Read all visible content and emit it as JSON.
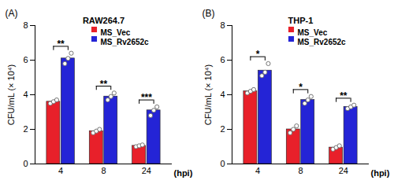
{
  "chart_data": [
    {
      "type": "bar",
      "panel_label": "(A)",
      "title": "RAW264.7",
      "x_label": "(hpi)",
      "y_label": "CFU/mL (× 10⁴)",
      "categories": [
        "4",
        "8",
        "24"
      ],
      "series": [
        {
          "name": "MS_Vec",
          "color": "#e8202a",
          "values": [
            3.6,
            1.9,
            1.05
          ],
          "points": [
            [
              3.5,
              3.6,
              3.7
            ],
            [
              1.8,
              1.9,
              2.0
            ],
            [
              1.0,
              1.05,
              1.1
            ]
          ]
        },
        {
          "name": "MS_Rv2652c",
          "color": "#2424d6",
          "values": [
            6.1,
            3.9,
            3.1
          ],
          "points": [
            [
              5.8,
              6.1,
              6.4
            ],
            [
              3.7,
              3.9,
              4.1
            ],
            [
              2.8,
              3.1,
              3.3
            ]
          ]
        }
      ],
      "annotations": [
        {
          "category": "4",
          "label": "**"
        },
        {
          "category": "8",
          "label": "**"
        },
        {
          "category": "24",
          "label": "***"
        }
      ],
      "ylim": [
        0,
        8
      ],
      "yticks": [
        0,
        2,
        4,
        6,
        8
      ],
      "legend": "top"
    },
    {
      "type": "bar",
      "panel_label": "(B)",
      "title": "THP-1",
      "x_label": "(hpi)",
      "y_label": "CFU/mL (× 10⁴)",
      "categories": [
        "4",
        "8",
        "24"
      ],
      "series": [
        {
          "name": "MS_Vec",
          "color": "#e8202a",
          "values": [
            4.2,
            2.0,
            0.95
          ],
          "points": [
            [
              4.1,
              4.2,
              4.3
            ],
            [
              1.8,
              2.0,
              2.2
            ],
            [
              0.85,
              0.95,
              1.05
            ]
          ]
        },
        {
          "name": "MS_Rv2652c",
          "color": "#2424d6",
          "values": [
            5.4,
            3.7,
            3.3
          ],
          "points": [
            [
              5.1,
              5.3,
              5.8
            ],
            [
              3.5,
              3.7,
              3.9
            ],
            [
              3.2,
              3.3,
              3.4
            ]
          ]
        }
      ],
      "annotations": [
        {
          "category": "4",
          "label": "*"
        },
        {
          "category": "8",
          "label": "*"
        },
        {
          "category": "24",
          "label": "**"
        }
      ],
      "ylim": [
        0,
        8
      ],
      "yticks": [
        0,
        2,
        4,
        6,
        8
      ],
      "legend": "top"
    }
  ]
}
